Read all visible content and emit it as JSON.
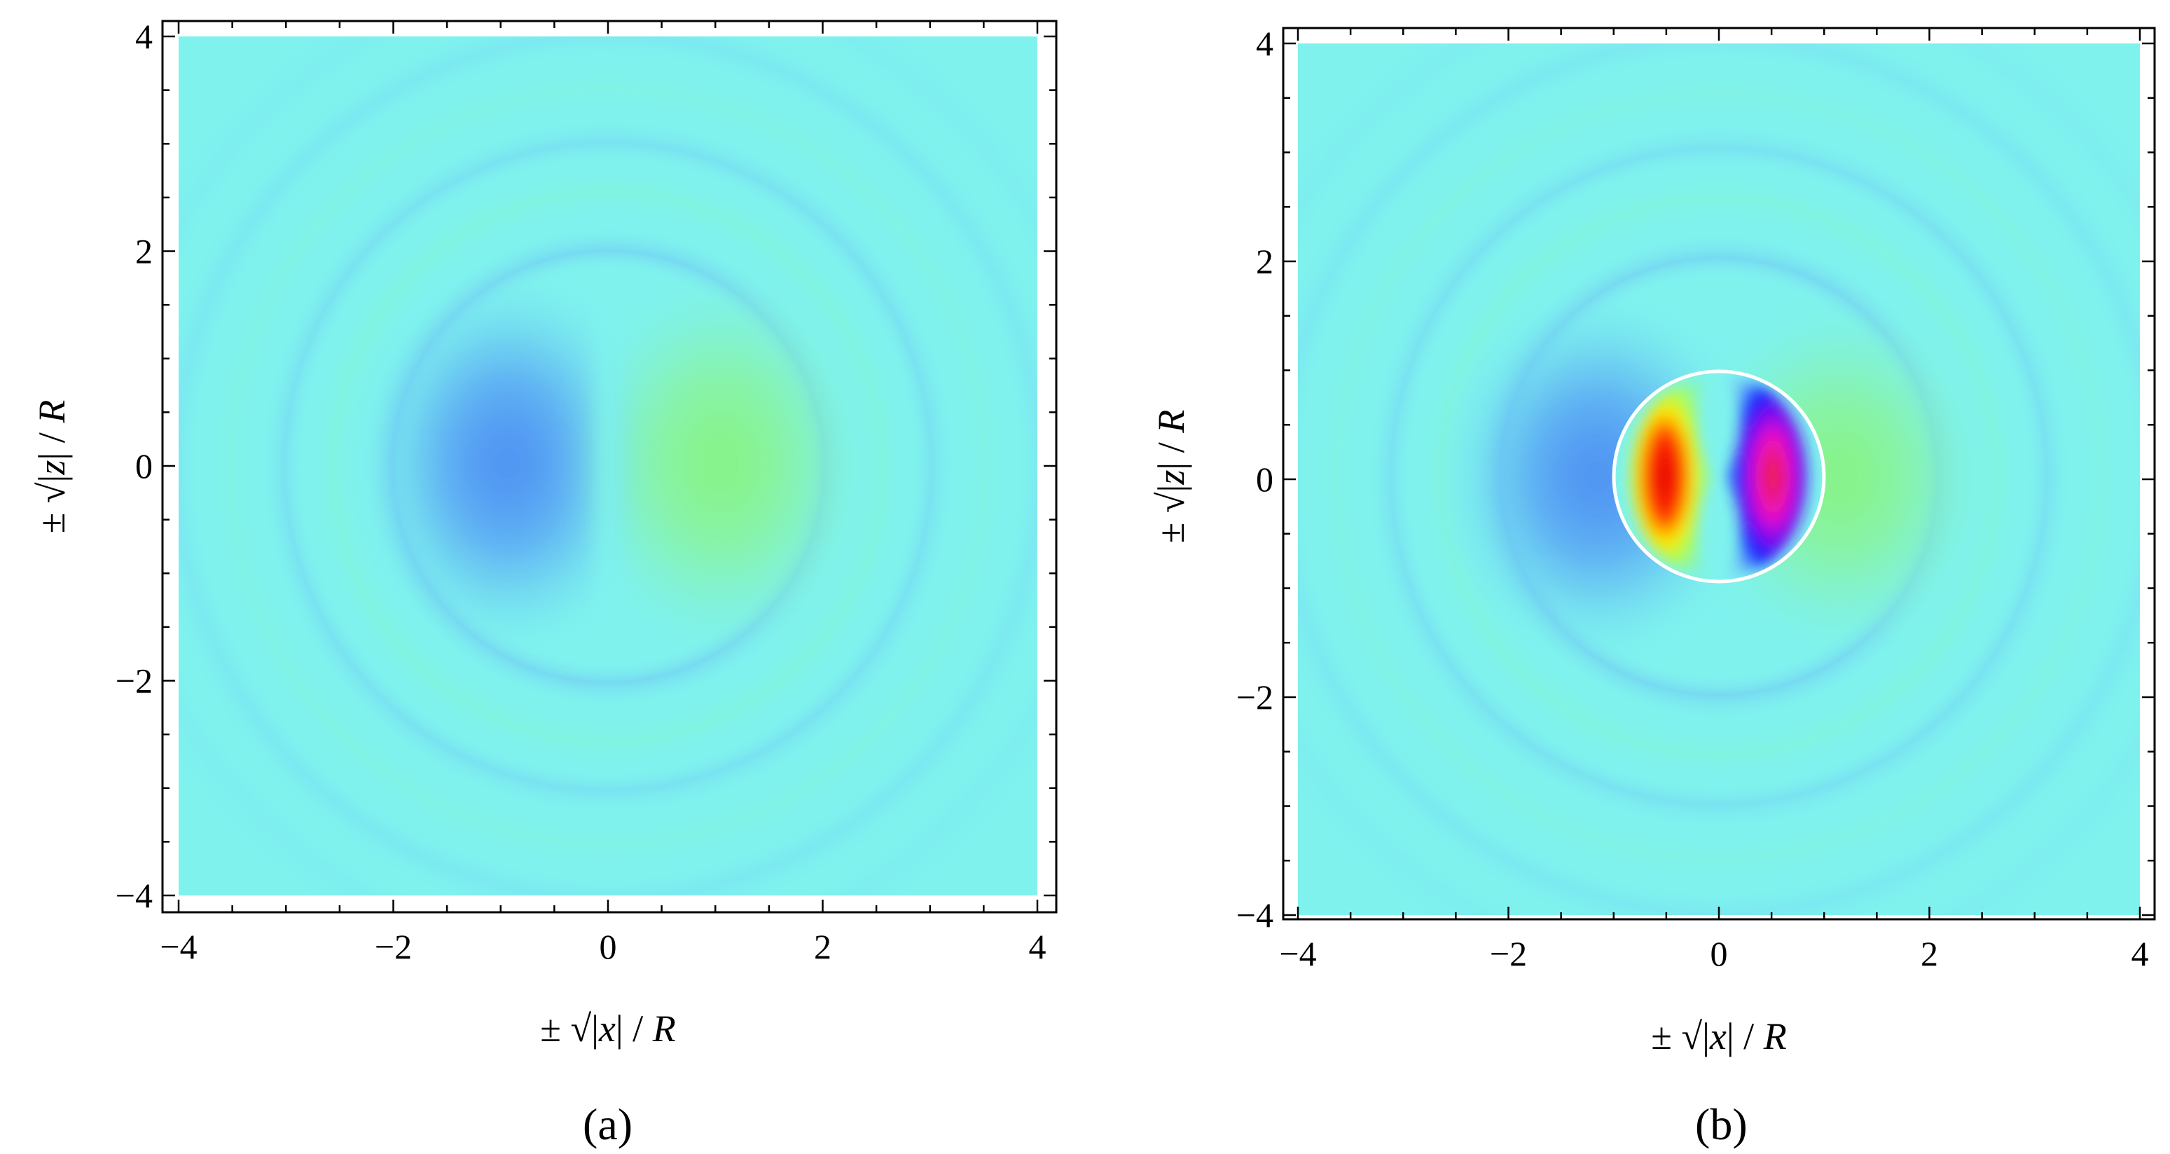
{
  "chart_data": [
    {
      "type": "heatmap",
      "panel_label": "(a)",
      "xlabel": "±√|x| / R",
      "ylabel": "±√|z| / R",
      "xlim": [
        -4,
        4
      ],
      "ylim": [
        -4,
        4
      ],
      "xticks": [
        -4,
        -2,
        0,
        2,
        4
      ],
      "yticks": [
        -4,
        -2,
        0,
        2,
        4
      ],
      "xticklabels": [
        "−4",
        "−2",
        "0",
        "2",
        "4"
      ],
      "yticklabels": [
        "−4",
        "−2",
        "0",
        "2",
        "4"
      ],
      "colormap": [
        "#0000ff",
        "#4d8cff",
        "#80ffee",
        "#80ff80",
        "#ffff00",
        "#ff0000",
        "#ff00ff"
      ],
      "background_color": "#7ff2ee",
      "field": {
        "pattern": "antisymmetric dipole with concentric ring ripples",
        "negative_lobe_center": [
          -1.1,
          0.0
        ],
        "positive_lobe_center": [
          1.1,
          0.0
        ],
        "ring_radii": [
          1.9,
          2.55,
          3.15,
          3.7
        ]
      },
      "sphere": null
    },
    {
      "type": "heatmap",
      "panel_label": "(b)",
      "xlabel": "±√|x| / R",
      "ylabel": "±√|z| / R",
      "xlim": [
        -4,
        4
      ],
      "ylim": [
        -4,
        4
      ],
      "xticks": [
        -4,
        -2,
        0,
        2,
        4
      ],
      "yticks": [
        -4,
        -2,
        0,
        2,
        4
      ],
      "xticklabels": [
        "−4",
        "−2",
        "0",
        "2",
        "4"
      ],
      "yticklabels": [
        "−4",
        "−2",
        "0",
        "2",
        "4"
      ],
      "colormap": [
        "#0000ff",
        "#4d8cff",
        "#80ffee",
        "#80ff80",
        "#ffff00",
        "#ff0000",
        "#ff00ff"
      ],
      "background_color": "#7ff2ee",
      "field": {
        "pattern": "outer dipole ripples with strong inner field inside sphere",
        "negative_lobe_center": [
          -1.35,
          0.0
        ],
        "positive_lobe_center": [
          1.35,
          0.0
        ],
        "ring_radii": [
          1.9,
          2.55,
          3.15,
          3.7
        ],
        "inner_left_colors": [
          "#80ff80",
          "#ffff00",
          "#ff0000"
        ],
        "inner_right_colors": [
          "#0000ff",
          "#ff00ff",
          "#ff0000"
        ]
      },
      "sphere": {
        "center": [
          0,
          0
        ],
        "radius": 1,
        "outline_color": "#ffffff"
      }
    }
  ]
}
